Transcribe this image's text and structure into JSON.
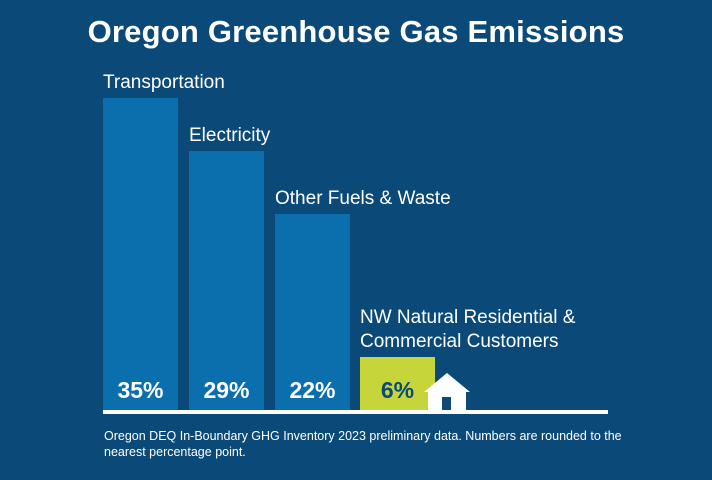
{
  "title": "Oregon Greenhouse Gas Emissions",
  "footnote": "Oregon DEQ In-Boundary GHG Inventory 2023 preliminary data. Numbers are rounded to the nearest percentage point.",
  "colors": {
    "background": "#0b4a78",
    "bar": "#0b6fae",
    "highlight": "#c6d63a",
    "highlight_text": "#0b4a78",
    "text": "#ffffff",
    "axis": "#ffffff"
  },
  "icon": "house-icon",
  "chart_data": {
    "type": "bar",
    "categories": [
      "Transportation",
      "Electricity",
      "Other Fuels & Waste",
      [
        "NW Natural Residential &",
        "Commercial Customers"
      ]
    ],
    "values": [
      35,
      29,
      22,
      6
    ],
    "value_labels": [
      "35%",
      "29%",
      "22%",
      "6%"
    ],
    "highlight_index": 3,
    "ylim": [
      0,
      35
    ],
    "unit": "%"
  }
}
